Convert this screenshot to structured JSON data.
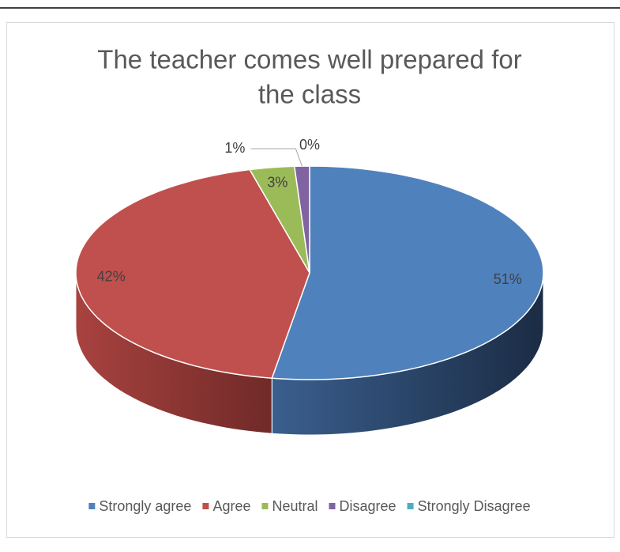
{
  "chart_data": {
    "type": "pie",
    "title": [
      "The teacher comes well prepared for",
      "the class"
    ],
    "categories": [
      "Strongly agree",
      "Agree",
      "Neutral",
      "Disagree",
      "Strongly Disagree"
    ],
    "values": [
      51,
      42,
      3,
      1,
      0
    ],
    "value_labels": [
      "51%",
      "42%",
      "3%",
      "1%",
      "0%"
    ],
    "colors": [
      "#4f81bd",
      "#c0504d",
      "#9bbb59",
      "#8064a2",
      "#4bacc6"
    ],
    "legend": "bottom"
  }
}
